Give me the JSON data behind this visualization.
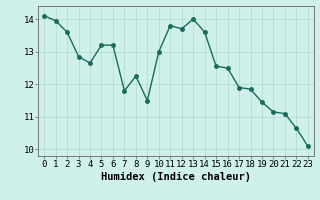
{
  "x": [
    0,
    1,
    2,
    3,
    4,
    5,
    6,
    7,
    8,
    9,
    10,
    11,
    12,
    13,
    14,
    15,
    16,
    17,
    18,
    19,
    20,
    21,
    22,
    23
  ],
  "y": [
    14.1,
    13.95,
    13.6,
    12.85,
    12.65,
    13.2,
    13.2,
    11.8,
    12.25,
    11.5,
    13.0,
    13.8,
    13.7,
    14.0,
    13.6,
    12.55,
    12.5,
    11.9,
    11.85,
    11.45,
    11.15,
    11.1,
    10.65,
    10.1
  ],
  "xlim": [
    -0.5,
    23.5
  ],
  "ylim": [
    9.8,
    14.4
  ],
  "yticks": [
    10,
    11,
    12,
    13,
    14
  ],
  "xticks": [
    0,
    1,
    2,
    3,
    4,
    5,
    6,
    7,
    8,
    9,
    10,
    11,
    12,
    13,
    14,
    15,
    16,
    17,
    18,
    19,
    20,
    21,
    22,
    23
  ],
  "xlabel": "Humidex (Indice chaleur)",
  "line_color": "#1a6b5a",
  "marker": "o",
  "marker_size": 2.5,
  "bg_color": "#cff0eb",
  "grid_color": "#b0d8d0",
  "axis_color": "#666666",
  "tick_fontsize": 6.5,
  "xlabel_fontsize": 7.5
}
